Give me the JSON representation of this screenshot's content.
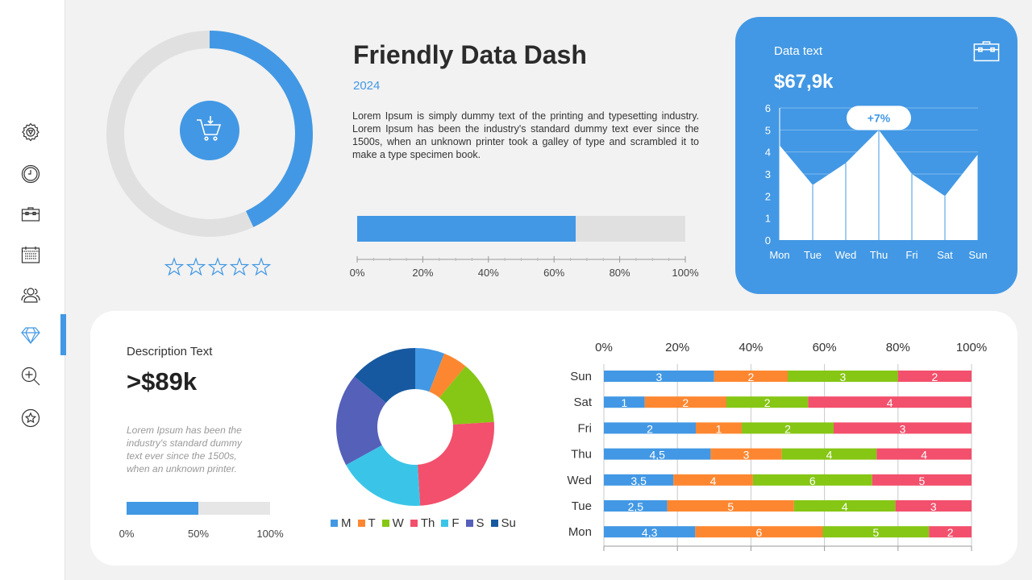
{
  "sidebar": {
    "items": [
      {
        "icon": "gear-icon",
        "active": false
      },
      {
        "icon": "clock-icon",
        "active": false
      },
      {
        "icon": "briefcase-icon",
        "active": false
      },
      {
        "icon": "calendar-icon",
        "active": false
      },
      {
        "icon": "users-icon",
        "active": false
      },
      {
        "icon": "diamond-icon",
        "active": true
      },
      {
        "icon": "zoom-in-icon",
        "active": false
      },
      {
        "icon": "star-icon",
        "active": false
      }
    ]
  },
  "header": {
    "title": "Friendly Data Dash",
    "year": "2024",
    "paragraph": "Lorem Ipsum is simply dummy text of the printing and typesetting industry. Lorem Ipsum has been the industry's standard dummy text ever since the 1500s, when an unknown printer took a galley of type and scrambled it to make a type specimen book."
  },
  "ring": {
    "progress_percent": 43,
    "icon": "shopping-cart-icon",
    "rating": {
      "filled": 0,
      "max": 5
    }
  },
  "progress": {
    "value_percent": 66.5,
    "ticks": [
      "0%",
      "20%",
      "40%",
      "60%",
      "80%",
      "100%"
    ]
  },
  "colors": {
    "accent": "#4298e4",
    "track": "#e0e0e0",
    "M": "#4298e4",
    "T": "#fd8731",
    "W": "#86c615",
    "Th": "#f2506c",
    "F": "#3ac5e8",
    "S": "#5560b9",
    "Su": "#1759a0"
  },
  "card": {
    "label": "Data text",
    "value": "$67,9k",
    "icon": "briefcase-icon",
    "badge": "+7%"
  },
  "description": {
    "label": "Description Text",
    "value": ">$89k",
    "text": "Lorem Ipsum has been the industry's standard dummy text ever since the 1500s, when an unknown printer.",
    "bar_percent": 50,
    "ticks": [
      "0%",
      "50%",
      "100%"
    ]
  },
  "chart_data": [
    {
      "type": "area",
      "categories": [
        "Mon",
        "Tue",
        "Wed",
        "Thu",
        "Fri",
        "Sat",
        "Sun"
      ],
      "values": [
        4.3,
        2.5,
        3.5,
        5,
        3,
        2,
        3.9
      ],
      "ylim": [
        0,
        6
      ],
      "yticks": [
        "0",
        "1",
        "2",
        "3",
        "4",
        "5",
        "6"
      ],
      "grid": true,
      "annotation": {
        "category": "Thu",
        "text": "+7%"
      }
    },
    {
      "type": "pie",
      "donut": true,
      "categories": [
        "M",
        "T",
        "W",
        "Th",
        "F",
        "S",
        "Su"
      ],
      "values": [
        6,
        5,
        13,
        25,
        18,
        19,
        14
      ],
      "legend": "bottom"
    },
    {
      "type": "bar",
      "orientation": "horizontal",
      "stacked": "percent",
      "categories": [
        "Sun",
        "Sat",
        "Fri",
        "Thu",
        "Wed",
        "Tue",
        "Mon"
      ],
      "xticks": [
        "0%",
        "20%",
        "40%",
        "60%",
        "80%",
        "100%"
      ],
      "grid": true,
      "series": [
        {
          "values": [
            3,
            1,
            2,
            4.5,
            3.5,
            2.5,
            4.3
          ],
          "labels": [
            "3",
            "1",
            "2",
            "4,5",
            "3,5",
            "2,5",
            "4,3"
          ]
        },
        {
          "values": [
            2,
            2,
            1,
            3,
            4,
            5,
            6
          ],
          "labels": [
            "2",
            "2",
            "1",
            "3",
            "4",
            "5",
            "6"
          ]
        },
        {
          "values": [
            3,
            2,
            2,
            4,
            6,
            4,
            5
          ],
          "labels": [
            "3",
            "2",
            "2",
            "4",
            "6",
            "4",
            "5"
          ]
        },
        {
          "values": [
            2,
            4,
            3,
            4,
            5,
            3,
            2
          ],
          "labels": [
            "2",
            "4",
            "3",
            "4",
            "5",
            "3",
            "2"
          ]
        }
      ]
    }
  ]
}
